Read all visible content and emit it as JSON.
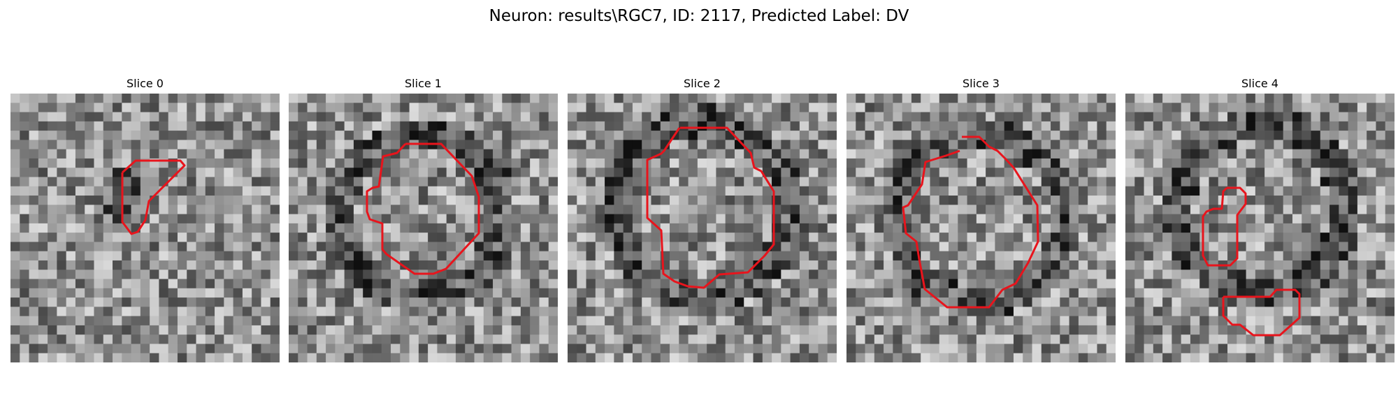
{
  "figure": {
    "title": "Neuron: results\\RGC7, ID: 2117, Predicted Label: DV"
  },
  "slices": [
    {
      "title": "Slice 0"
    },
    {
      "title": "Slice 1"
    },
    {
      "title": "Slice 2"
    },
    {
      "title": "Slice 3"
    },
    {
      "title": "Slice 4"
    }
  ],
  "colors": {
    "contour": "#e8141c",
    "background": "#ffffff"
  }
}
